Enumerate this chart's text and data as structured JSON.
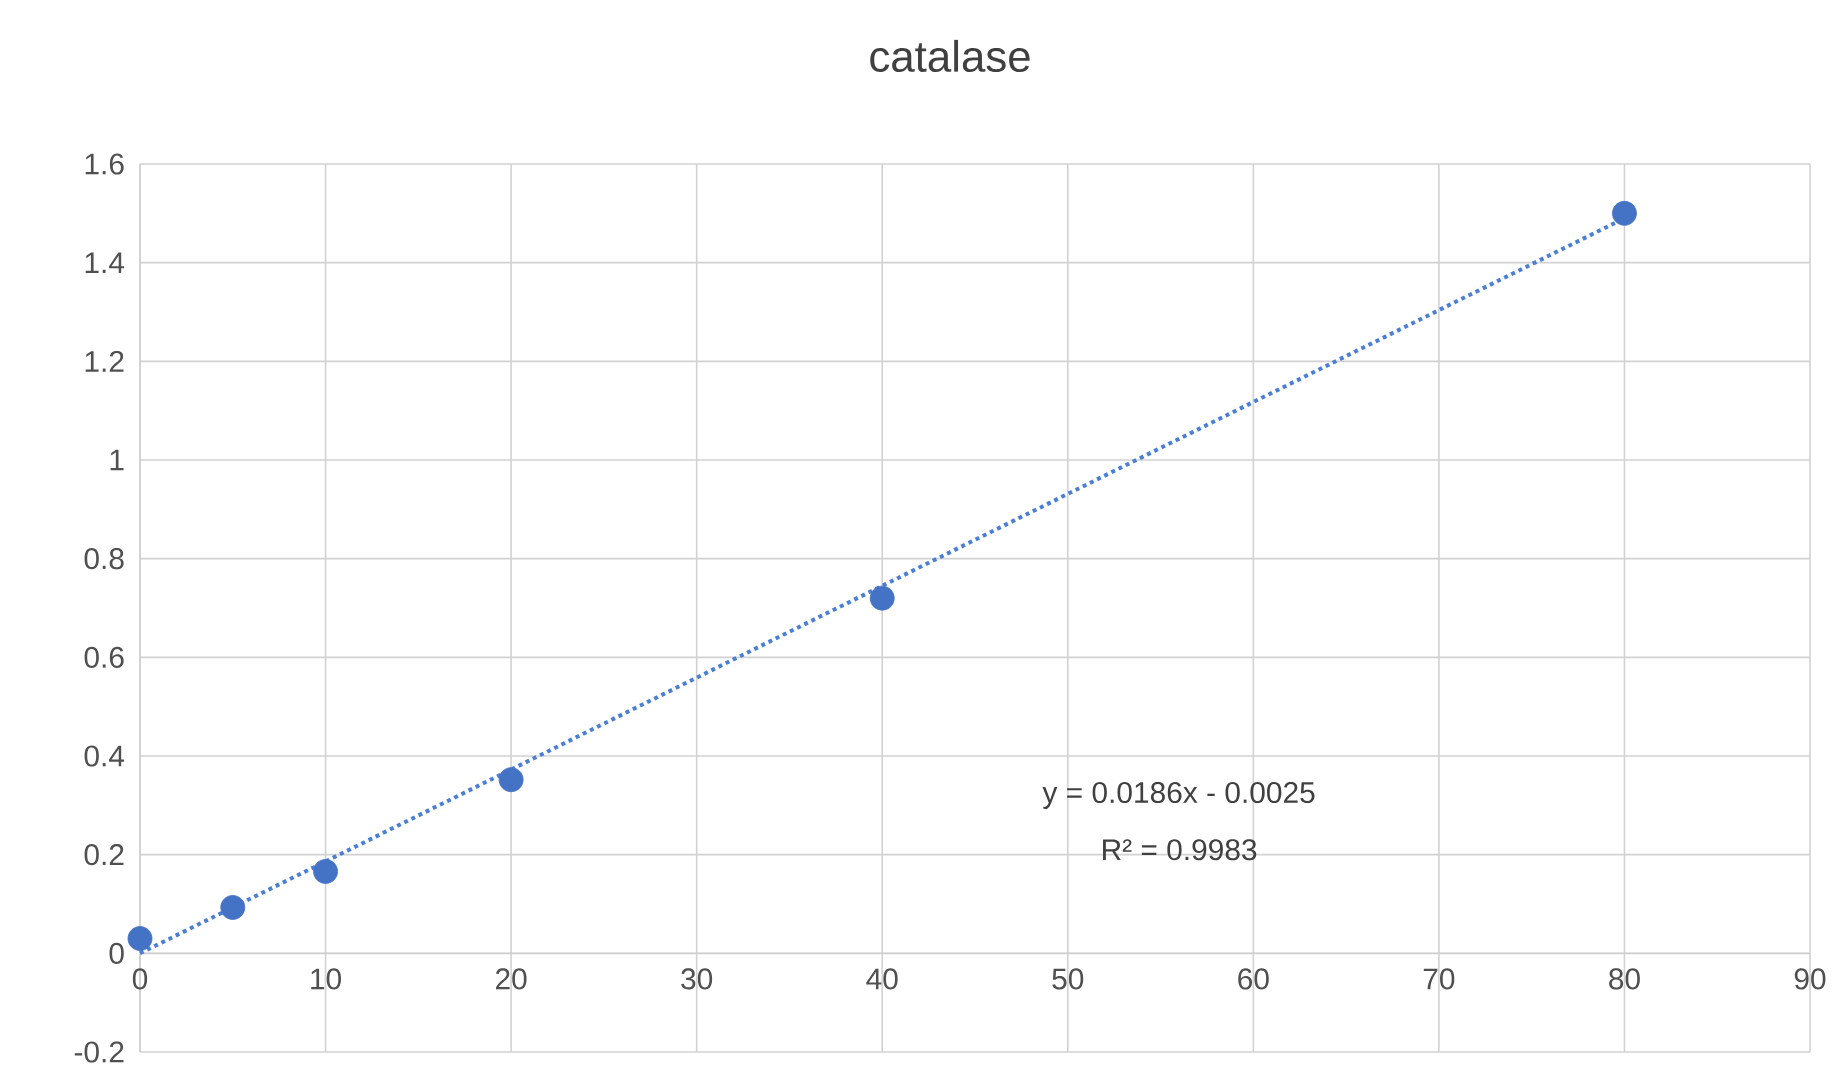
{
  "chart_data": {
    "type": "scatter",
    "title": "catalase",
    "series": [
      {
        "color": "#4472c4",
        "marker": "circle",
        "x": [
          0,
          5,
          10,
          20,
          40,
          80
        ],
        "values": [
          0.03,
          0.093,
          0.166,
          0.352,
          0.72,
          1.5
        ]
      },
      {
        "type": "line",
        "color": "#4a7fd6",
        "marker": "none",
        "line_style": "dotted",
        "x": [
          0,
          80
        ],
        "values": [
          0,
          1.49
        ]
      }
    ],
    "xlim": [
      0,
      90
    ],
    "xticks": [
      0,
      10,
      20,
      30,
      40,
      50,
      60,
      70,
      80,
      90
    ],
    "ylim": [
      -0.2,
      1.6
    ],
    "yticks": [
      -0.2,
      0,
      0.2,
      0.4,
      0.6,
      0.8,
      1,
      1.2,
      1.4,
      1.6
    ],
    "grid": true,
    "annotations": [
      "y = 0.0186x - 0.0025",
      "R² = 0.9983"
    ]
  }
}
